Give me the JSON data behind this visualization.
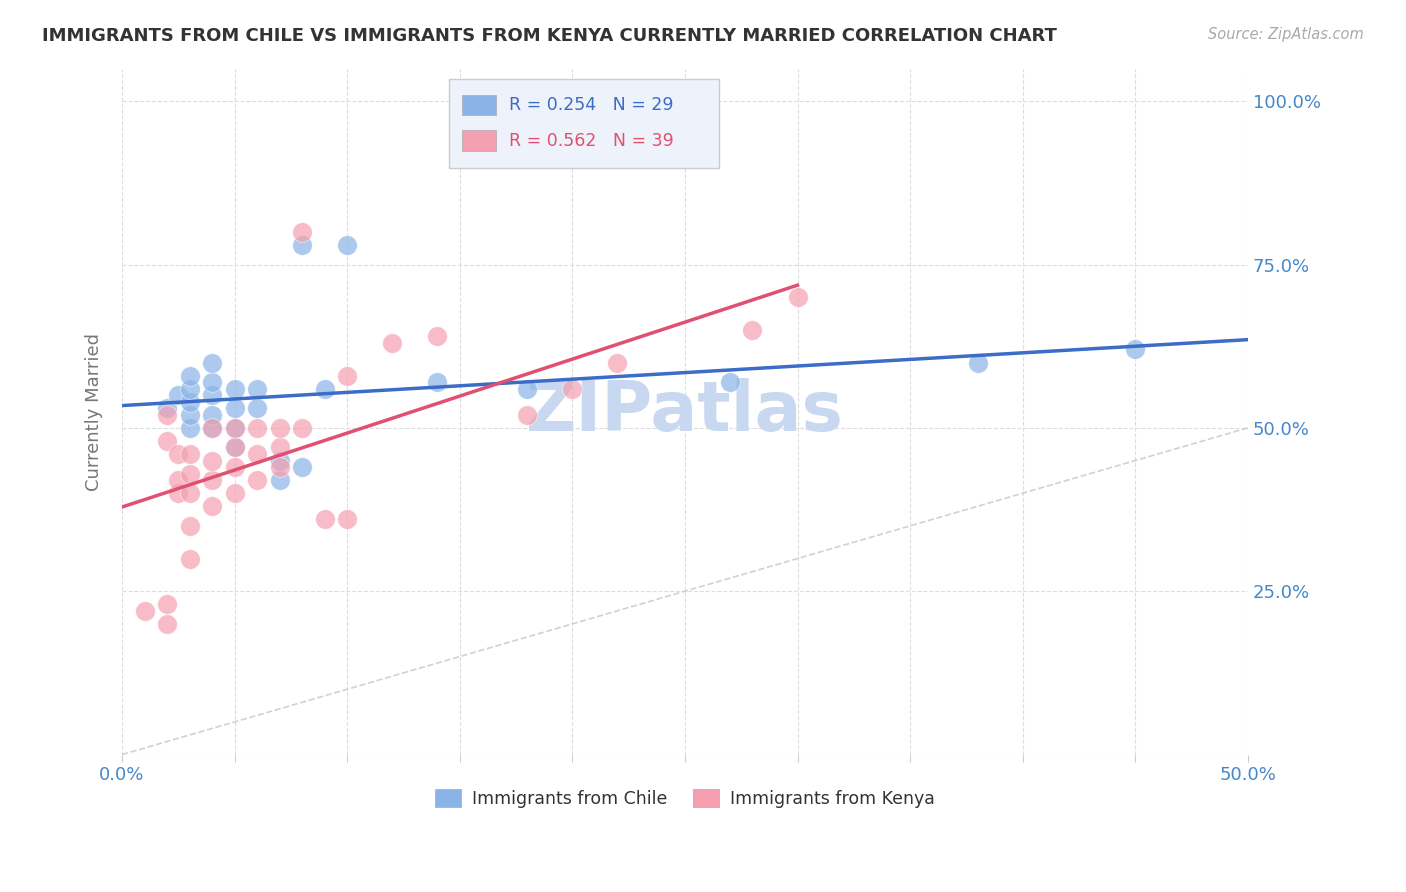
{
  "title": "IMMIGRANTS FROM CHILE VS IMMIGRANTS FROM KENYA CURRENTLY MARRIED CORRELATION CHART",
  "source_text": "Source: ZipAtlas.com",
  "ylabel_label": "Currently Married",
  "xlim": [
    0.0,
    0.5
  ],
  "ylim": [
    0.0,
    1.05
  ],
  "xticks": [
    0.0,
    0.05,
    0.1,
    0.15,
    0.2,
    0.25,
    0.3,
    0.35,
    0.4,
    0.45,
    0.5
  ],
  "xticklabels": [
    "0.0%",
    "",
    "",
    "",
    "",
    "",
    "",
    "",
    "",
    "",
    "50.0%"
  ],
  "ytick_positions": [
    0.0,
    0.25,
    0.5,
    0.75,
    1.0
  ],
  "yticklabels": [
    "",
    "25.0%",
    "50.0%",
    "75.0%",
    "100.0%"
  ],
  "chile_R": 0.254,
  "chile_N": 29,
  "kenya_R": 0.562,
  "kenya_N": 39,
  "chile_color": "#8ab4e8",
  "kenya_color": "#f4a0b0",
  "chile_line_color": "#3a6cc8",
  "kenya_line_color": "#e05070",
  "diagonal_color": "#cccccc",
  "grid_color": "#dddddd",
  "background_color": "#ffffff",
  "title_color": "#333333",
  "axis_label_color": "#777777",
  "tick_label_color": "#4488cc",
  "legend_box_color": "#eef2fa",
  "watermark_text": "ZIPatlas",
  "watermark_color": "#c8d8f0",
  "chile_x": [
    0.02,
    0.025,
    0.03,
    0.03,
    0.03,
    0.03,
    0.03,
    0.04,
    0.04,
    0.04,
    0.04,
    0.04,
    0.05,
    0.05,
    0.05,
    0.05,
    0.06,
    0.06,
    0.07,
    0.07,
    0.08,
    0.08,
    0.09,
    0.1,
    0.14,
    0.18,
    0.27,
    0.38,
    0.45
  ],
  "chile_y": [
    0.53,
    0.55,
    0.5,
    0.52,
    0.54,
    0.56,
    0.58,
    0.5,
    0.52,
    0.55,
    0.57,
    0.6,
    0.47,
    0.5,
    0.53,
    0.56,
    0.53,
    0.56,
    0.42,
    0.45,
    0.44,
    0.78,
    0.56,
    0.78,
    0.57,
    0.56,
    0.57,
    0.6,
    0.62
  ],
  "kenya_x": [
    0.01,
    0.02,
    0.02,
    0.02,
    0.02,
    0.025,
    0.025,
    0.025,
    0.03,
    0.03,
    0.03,
    0.03,
    0.03,
    0.04,
    0.04,
    0.04,
    0.04,
    0.05,
    0.05,
    0.05,
    0.05,
    0.06,
    0.06,
    0.06,
    0.07,
    0.07,
    0.07,
    0.08,
    0.08,
    0.09,
    0.1,
    0.1,
    0.12,
    0.14,
    0.18,
    0.2,
    0.22,
    0.28,
    0.3
  ],
  "kenya_y": [
    0.22,
    0.2,
    0.23,
    0.48,
    0.52,
    0.4,
    0.42,
    0.46,
    0.3,
    0.35,
    0.4,
    0.43,
    0.46,
    0.38,
    0.42,
    0.45,
    0.5,
    0.4,
    0.44,
    0.47,
    0.5,
    0.42,
    0.46,
    0.5,
    0.44,
    0.47,
    0.5,
    0.5,
    0.8,
    0.36,
    0.36,
    0.58,
    0.63,
    0.64,
    0.52,
    0.56,
    0.6,
    0.65,
    0.7
  ]
}
